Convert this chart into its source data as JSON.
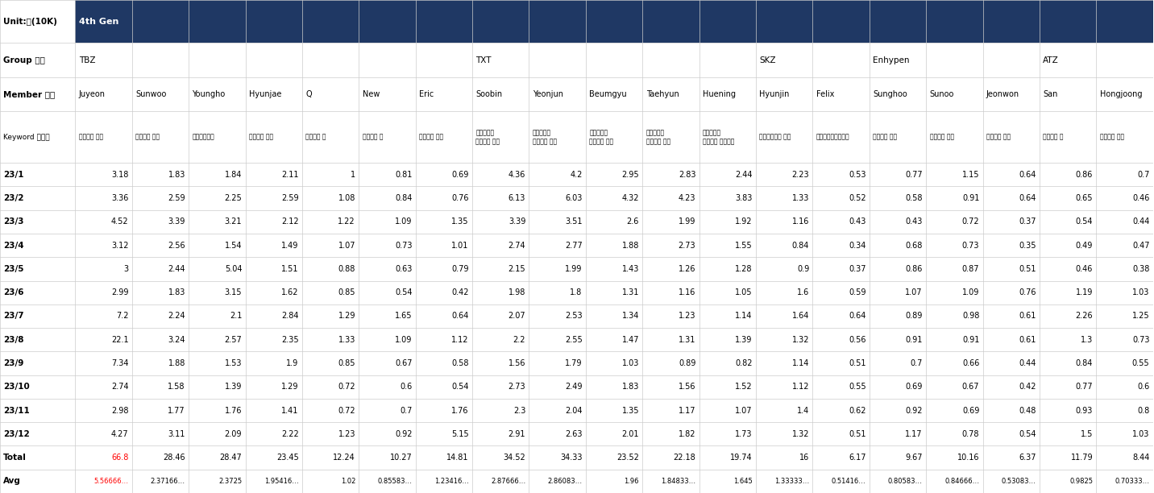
{
  "title_unit": "Unit:만(10K)",
  "title_gen": "4th Gen",
  "header_bg": "#1f3864",
  "header_fg": "#ffffff",
  "total_color": "#ff0000",
  "avg_color": "#ff0000",
  "bg_color": "#ffffff",
  "groups": [
    "TBZ",
    "TBZ",
    "TBZ",
    "TBZ",
    "TBZ",
    "TBZ",
    "TBZ",
    "TXT",
    "TXT",
    "TXT",
    "TXT",
    "TXT",
    "SKZ",
    "SKZ",
    "Enhypen",
    "Enhypen",
    "Enhypen",
    "ATZ",
    "ATZ"
  ],
  "members": [
    "Juyeon",
    "Sunwoo",
    "Youngho",
    "Hyunjae",
    "Q",
    "New",
    "Eric",
    "Soobin",
    "Yeonjun",
    "Beumgyu",
    "Taehyun",
    "Huening",
    "Hyunjin",
    "Felix",
    "Sunghoo",
    "Sunoo",
    "Jeonwon",
    "San",
    "Hongjoong"
  ],
  "keywords": [
    "더보이즈 주연",
    "더보이즈 선우",
    "더보이즈영흔",
    "더보이즈 현재",
    "더보이즈 큐",
    "더보이즈 뉴",
    "더보이즈 에릭",
    "투모로우바\n이투게더 수빈",
    "투모로우바\n이투게더 연준",
    "투모로우바\n이투게더 범규",
    "투모로우바\n이투게더 태현",
    "투모로우바\n이투게더 휘닝카이",
    "스트레이키즈 현진",
    "스트레이키즈피릭스",
    "엔하이픈 성훈",
    "엔하이픈 선우",
    "엔하이픈 정원",
    "에이티즈 산",
    "에이티즈 홍중"
  ],
  "rows": {
    "23/1": [
      3.18,
      1.83,
      1.84,
      2.11,
      1,
      0.81,
      0.69,
      4.36,
      4.2,
      2.95,
      2.83,
      2.44,
      2.23,
      0.53,
      0.77,
      1.15,
      0.64,
      0.86,
      0.7
    ],
    "23/2": [
      3.36,
      2.59,
      2.25,
      2.59,
      1.08,
      0.84,
      0.76,
      6.13,
      6.03,
      4.32,
      4.23,
      3.83,
      1.33,
      0.52,
      0.58,
      0.91,
      0.64,
      0.65,
      0.46
    ],
    "23/3": [
      4.52,
      3.39,
      3.21,
      2.12,
      1.22,
      1.09,
      1.35,
      3.39,
      3.51,
      2.6,
      1.99,
      1.92,
      1.16,
      0.43,
      0.43,
      0.72,
      0.37,
      0.54,
      0.44
    ],
    "23/4": [
      3.12,
      2.56,
      1.54,
      1.49,
      1.07,
      0.73,
      1.01,
      2.74,
      2.77,
      1.88,
      2.73,
      1.55,
      0.84,
      0.34,
      0.68,
      0.73,
      0.35,
      0.49,
      0.47
    ],
    "23/5": [
      3,
      2.44,
      5.04,
      1.51,
      0.88,
      0.63,
      0.79,
      2.15,
      1.99,
      1.43,
      1.26,
      1.28,
      0.9,
      0.37,
      0.86,
      0.87,
      0.51,
      0.46,
      0.38
    ],
    "23/6": [
      2.99,
      1.83,
      3.15,
      1.62,
      0.85,
      0.54,
      0.42,
      1.98,
      1.8,
      1.31,
      1.16,
      1.05,
      1.6,
      0.59,
      1.07,
      1.09,
      0.76,
      1.19,
      1.03
    ],
    "23/7": [
      7.2,
      2.24,
      2.1,
      2.84,
      1.29,
      1.65,
      0.64,
      2.07,
      2.53,
      1.34,
      1.23,
      1.14,
      1.64,
      0.64,
      0.89,
      0.98,
      0.61,
      2.26,
      1.25
    ],
    "23/8": [
      22.1,
      3.24,
      2.57,
      2.35,
      1.33,
      1.09,
      1.12,
      2.2,
      2.55,
      1.47,
      1.31,
      1.39,
      1.32,
      0.56,
      0.91,
      0.91,
      0.61,
      1.3,
      0.73
    ],
    "23/9": [
      7.34,
      1.88,
      1.53,
      1.9,
      0.85,
      0.67,
      0.58,
      1.56,
      1.79,
      1.03,
      0.89,
      0.82,
      1.14,
      0.51,
      0.7,
      0.66,
      0.44,
      0.84,
      0.55
    ],
    "23/10": [
      2.74,
      1.58,
      1.39,
      1.29,
      0.72,
      0.6,
      0.54,
      2.73,
      2.49,
      1.83,
      1.56,
      1.52,
      1.12,
      0.55,
      0.69,
      0.67,
      0.42,
      0.77,
      0.6
    ],
    "23/11": [
      2.98,
      1.77,
      1.76,
      1.41,
      0.72,
      0.7,
      1.76,
      2.3,
      2.04,
      1.35,
      1.17,
      1.07,
      1.4,
      0.62,
      0.92,
      0.69,
      0.48,
      0.93,
      0.8
    ],
    "23/12": [
      4.27,
      3.11,
      2.09,
      2.22,
      1.23,
      0.92,
      5.15,
      2.91,
      2.63,
      2.01,
      1.82,
      1.73,
      1.32,
      0.51,
      1.17,
      0.78,
      0.54,
      1.5,
      1.03
    ]
  },
  "totals": [
    66.8,
    28.46,
    28.47,
    23.45,
    12.24,
    10.27,
    14.81,
    34.52,
    34.33,
    23.52,
    22.18,
    19.74,
    16,
    6.17,
    9.67,
    10.16,
    6.37,
    11.79,
    8.44
  ],
  "avgs": [
    "5.56666…",
    "2.37166…",
    "2.3725",
    "1.95416…",
    "1.02",
    "0.85583…",
    "1.23416…",
    "2.87666…",
    "2.86083…",
    "1.96",
    "1.84833…",
    "1.645",
    "1.33333…",
    "0.51416…",
    "0.80583…",
    "0.84666…",
    "0.53083…",
    "0.9825",
    "0.70333…"
  ],
  "row_labels": [
    "23/1",
    "23/2",
    "23/3",
    "23/4",
    "23/5",
    "23/6",
    "23/7",
    "23/8",
    "23/9",
    "23/10",
    "23/11",
    "23/12",
    "Total",
    "Avg"
  ]
}
